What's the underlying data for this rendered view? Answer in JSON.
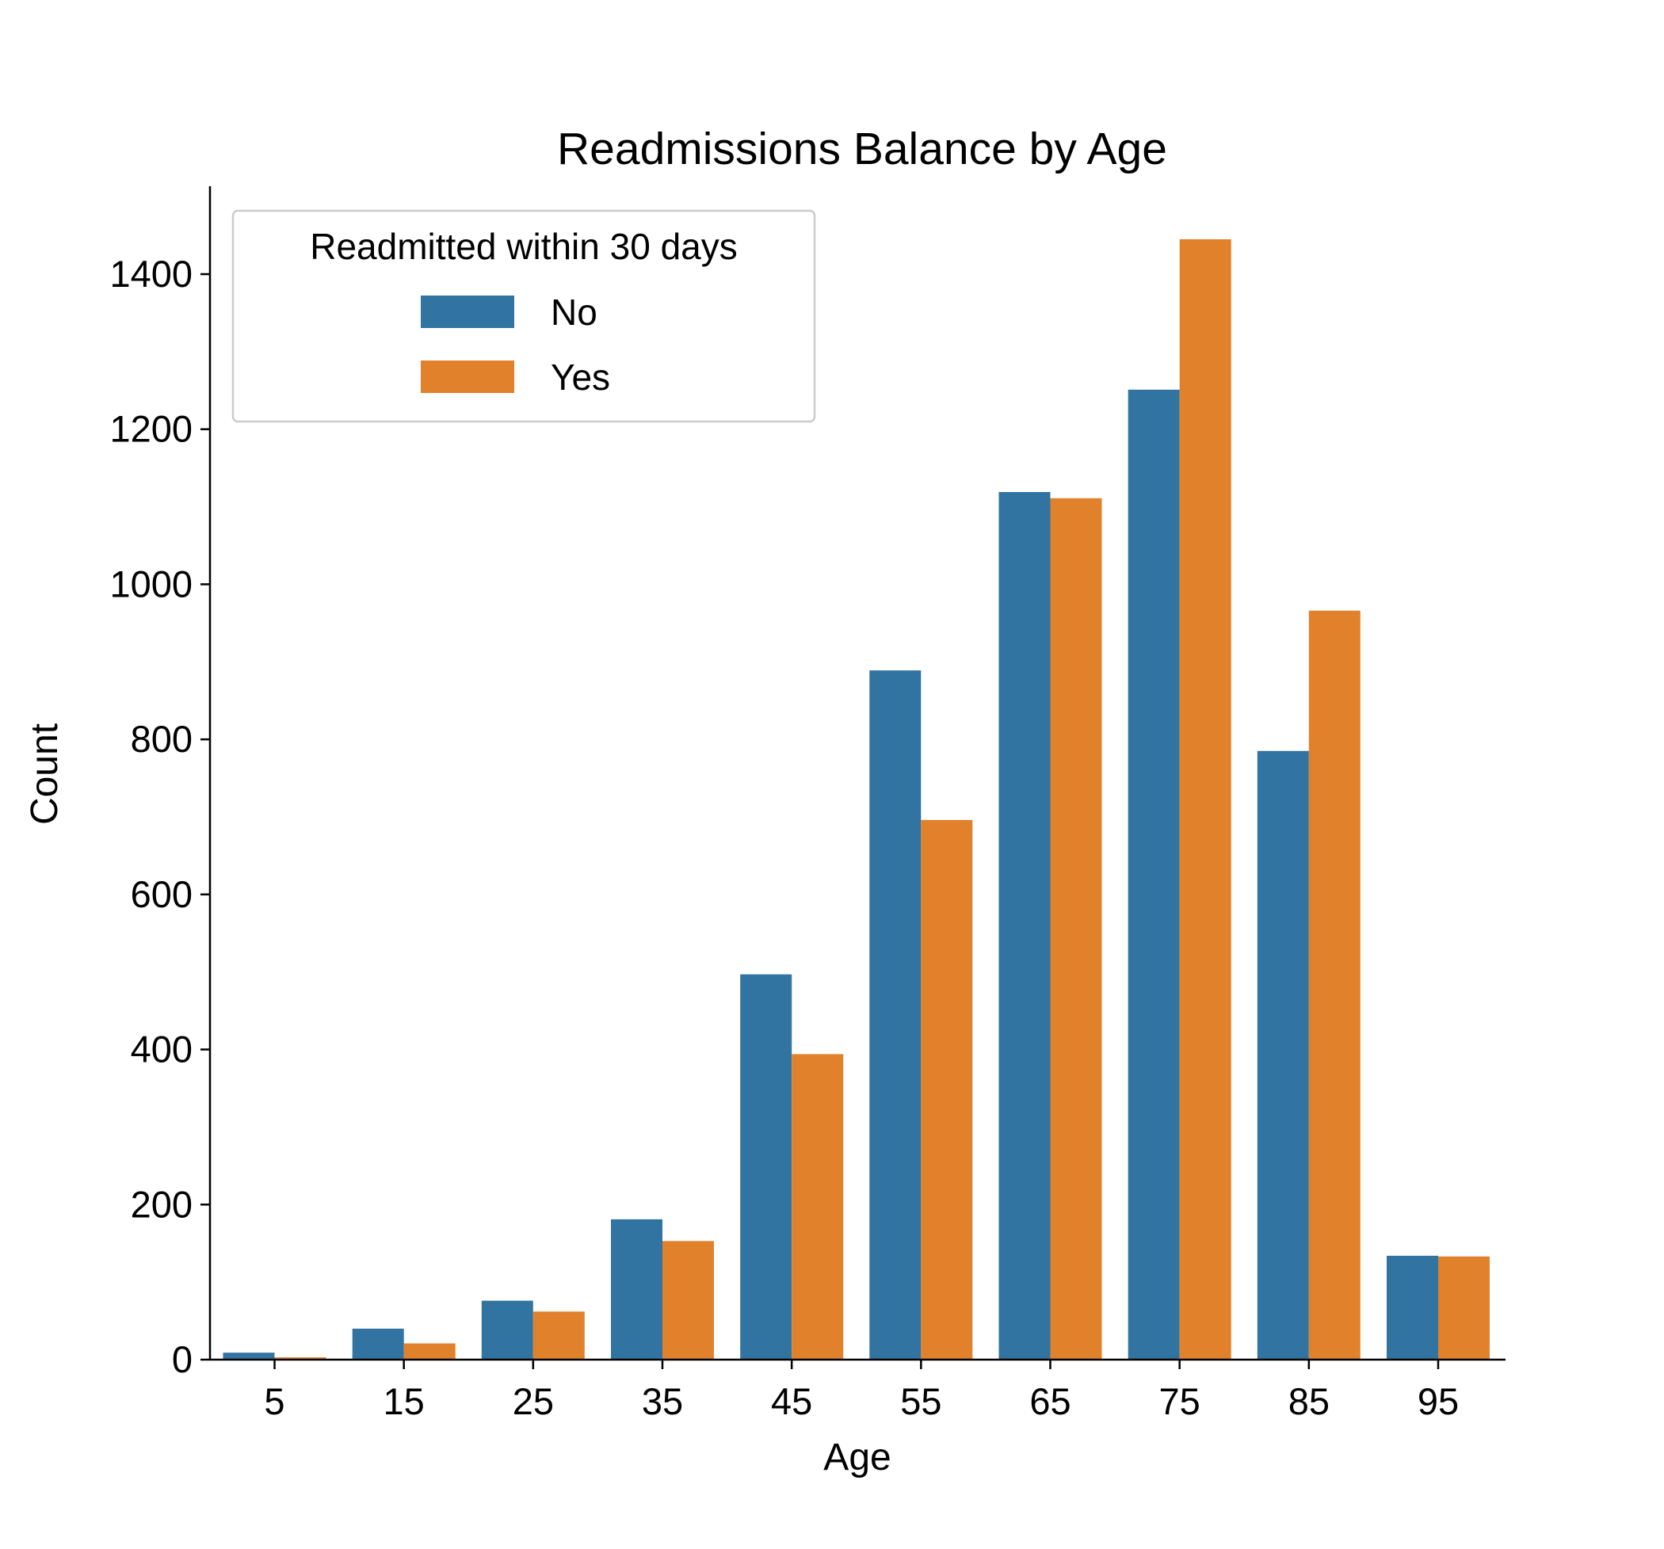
{
  "chart_data": {
    "type": "bar",
    "title": "Readmissions Balance by Age",
    "xlabel": "Age",
    "ylabel": "Count",
    "categories": [
      "5",
      "15",
      "25",
      "35",
      "45",
      "55",
      "65",
      "75",
      "85",
      "95"
    ],
    "series": [
      {
        "name": "No",
        "color": "#3274a1",
        "values": [
          9,
          40,
          76,
          181,
          497,
          889,
          1119,
          1251,
          785,
          134
        ]
      },
      {
        "name": "Yes",
        "color": "#e1812c",
        "values": [
          3,
          21,
          62,
          153,
          394,
          696,
          1111,
          1445,
          966,
          133
        ]
      }
    ],
    "ylim": [
      0,
      1520
    ],
    "yticks": [
      0,
      200,
      400,
      600,
      800,
      1000,
      1200,
      1400
    ],
    "grid": false,
    "legend": {
      "title": "Readmitted within 30 days",
      "placement": "top-left"
    }
  }
}
